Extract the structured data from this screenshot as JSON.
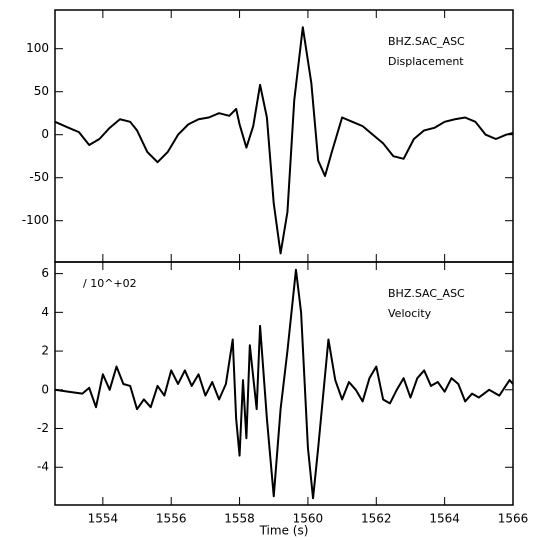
{
  "chart_data": [
    {
      "type": "line",
      "color": "#000000",
      "annotations": [
        "BHZ.SAC_ASC",
        "Displacement"
      ],
      "x": [
        1552.6,
        1553.0,
        1553.3,
        1553.6,
        1553.9,
        1554.2,
        1554.5,
        1554.8,
        1555.0,
        1555.3,
        1555.6,
        1555.9,
        1556.2,
        1556.5,
        1556.8,
        1557.1,
        1557.4,
        1557.7,
        1557.9,
        1558.0,
        1558.2,
        1558.4,
        1558.6,
        1558.8,
        1559.0,
        1559.2,
        1559.4,
        1559.6,
        1559.85,
        1560.1,
        1560.3,
        1560.5,
        1560.7,
        1561.0,
        1561.3,
        1561.6,
        1561.9,
        1562.2,
        1562.5,
        1562.8,
        1563.1,
        1563.4,
        1563.7,
        1564.0,
        1564.3,
        1564.6,
        1564.9,
        1565.2,
        1565.5,
        1565.8,
        1566.0
      ],
      "values": [
        15,
        8,
        3,
        -12,
        -5,
        8,
        18,
        15,
        5,
        -20,
        -32,
        -20,
        0,
        12,
        18,
        20,
        25,
        22,
        30,
        12,
        -15,
        10,
        58,
        20,
        -80,
        -138,
        -90,
        40,
        125,
        60,
        -30,
        -48,
        -20,
        20,
        15,
        10,
        0,
        -10,
        -25,
        -28,
        -5,
        5,
        8,
        15,
        18,
        20,
        15,
        0,
        -5,
        0,
        2
      ],
      "xlim": [
        1552.6,
        1566
      ],
      "ylim": [
        -148,
        145
      ],
      "xticks": [
        1554,
        1556,
        1558,
        1560,
        1562,
        1564,
        1566
      ],
      "yticks": [
        -100,
        -50,
        0,
        50,
        100
      ]
    },
    {
      "type": "line",
      "color": "#000000",
      "scale_note": "/ 10^+02",
      "annotations": [
        "BHZ.SAC_ASC",
        "Velocity"
      ],
      "xlabel": "Time (s)",
      "x": [
        1552.6,
        1553.0,
        1553.4,
        1553.6,
        1553.8,
        1554.0,
        1554.2,
        1554.4,
        1554.6,
        1554.8,
        1555.0,
        1555.2,
        1555.4,
        1555.6,
        1555.8,
        1556.0,
        1556.2,
        1556.4,
        1556.6,
        1556.8,
        1557.0,
        1557.2,
        1557.4,
        1557.6,
        1557.8,
        1557.9,
        1558.0,
        1558.1,
        1558.2,
        1558.3,
        1558.5,
        1558.6,
        1558.8,
        1559.0,
        1559.2,
        1559.4,
        1559.65,
        1559.8,
        1560.0,
        1560.15,
        1560.3,
        1560.6,
        1560.8,
        1561.0,
        1561.2,
        1561.4,
        1561.6,
        1561.8,
        1562.0,
        1562.2,
        1562.4,
        1562.6,
        1562.8,
        1563.0,
        1563.2,
        1563.4,
        1563.6,
        1563.8,
        1564.0,
        1564.2,
        1564.4,
        1564.6,
        1564.8,
        1565.0,
        1565.3,
        1565.6,
        1565.9,
        1566.0
      ],
      "values": [
        0,
        -0.1,
        -0.2,
        0.1,
        -0.9,
        0.8,
        0,
        1.2,
        0.3,
        0.2,
        -1.0,
        -0.5,
        -0.9,
        0.2,
        -0.3,
        1.0,
        0.3,
        1.0,
        0.2,
        0.8,
        -0.3,
        0.4,
        -0.5,
        0.3,
        2.6,
        -1.5,
        -3.4,
        0.5,
        -2.5,
        2.3,
        -1,
        3.3,
        -1.5,
        -5.5,
        -1,
        2,
        6.2,
        4,
        -3,
        -5.6,
        -3,
        2.6,
        0.5,
        -0.5,
        0.4,
        0,
        -0.6,
        0.6,
        1.2,
        -0.5,
        -0.7,
        0,
        0.6,
        -0.4,
        0.6,
        1,
        0.2,
        0.4,
        -0.1,
        0.6,
        0.3,
        -0.6,
        -0.2,
        -0.4,
        0,
        -0.3,
        0.5,
        0.3
      ],
      "xlim": [
        1552.6,
        1566
      ],
      "ylim": [
        -5.95,
        6.6
      ],
      "xticks": [
        1554,
        1556,
        1558,
        1560,
        1562,
        1564,
        1566
      ],
      "yticks": [
        -4,
        -2,
        0,
        2,
        4,
        6
      ]
    }
  ]
}
